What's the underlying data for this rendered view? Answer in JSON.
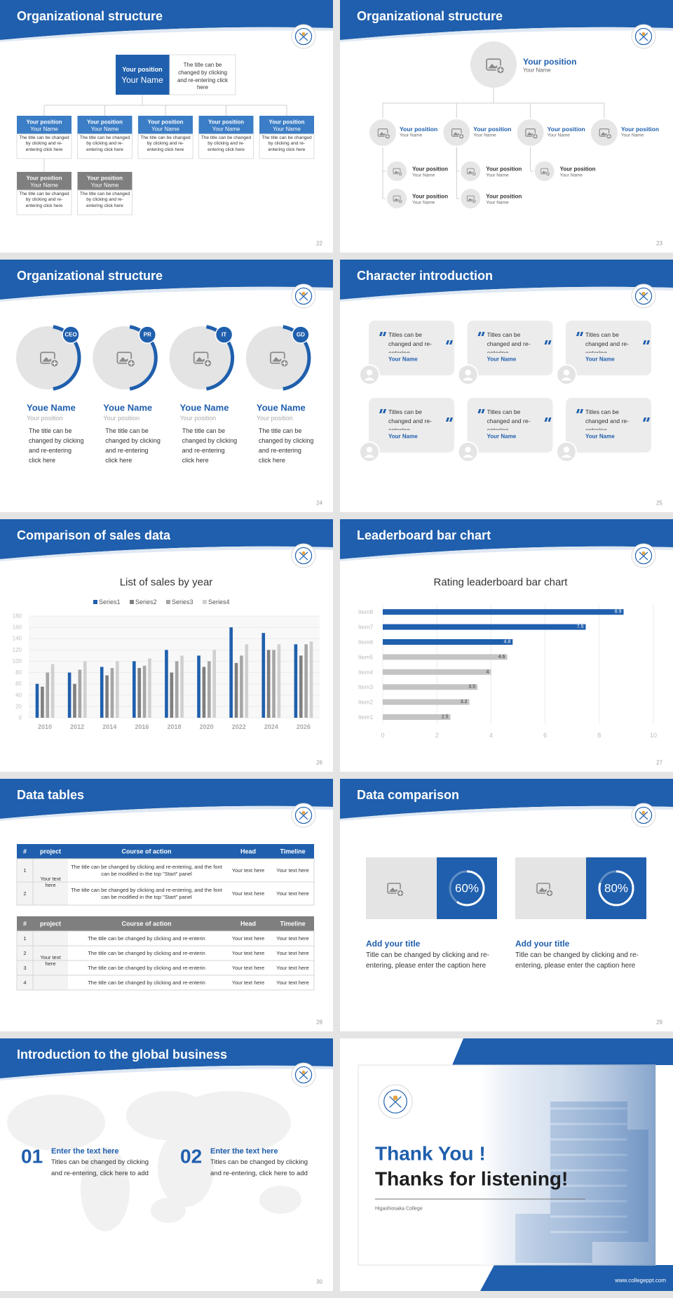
{
  "slides": [
    {
      "layout": "org-chart",
      "title": "Organizational structure",
      "page": "22",
      "top": {
        "position": "Your position",
        "name": "Your Name",
        "text": "The title can be changed by clicking and re-entering click here",
        "color": "#1f5fad"
      },
      "members": [
        {
          "position": "Your position",
          "name": "Your Name",
          "text": "The title can be changed by clicking and re-entering click here",
          "color": "#3b7dc6"
        },
        {
          "position": "Your position",
          "name": "Your Name",
          "text": "The title can be changed by clicking and re-entering click here",
          "color": "#3b7dc6"
        },
        {
          "position": "Your position",
          "name": "Your Name",
          "text": "The title can be changed by clicking and re-entering click here",
          "color": "#3b7dc6"
        },
        {
          "position": "Your position",
          "name": "Your Name",
          "text": "The title can be changed by clicking and re-entering click here",
          "color": "#3b7dc6"
        },
        {
          "position": "Your position",
          "name": "Your Name",
          "text": "The title can be changed by clicking and re-entering click here",
          "color": "#3b7dc6"
        },
        {
          "position": "Your position",
          "name": "Your Name",
          "text": "The title can be changed by clicking and re-entering click here",
          "color": "#7f7f7f"
        },
        {
          "position": "Your position",
          "name": "Your Name",
          "text": "The title can be changed by clicking and re-entering click here",
          "color": "#7f7f7f"
        }
      ]
    },
    {
      "layout": "org-tree",
      "title": "Organizational structure",
      "page": "23",
      "top": {
        "position": "Your position",
        "name": "Your Name"
      },
      "nodes": [
        {
          "position": "Your position",
          "name": "Your Name",
          "children": [
            {
              "position": "Your position",
              "name": "Your Name"
            },
            {
              "position": "Your position",
              "name": "Your Name"
            }
          ]
        },
        {
          "position": "Your position",
          "name": "Your Name",
          "children": [
            {
              "position": "Your position",
              "name": "Your Name"
            },
            {
              "position": "Your position",
              "name": "Your Name"
            }
          ]
        },
        {
          "position": "Your position",
          "name": "Your Name",
          "children": [
            {
              "position": "Your position",
              "name": "Your Name"
            }
          ]
        },
        {
          "position": "Your position",
          "name": "Your Name",
          "children": []
        }
      ]
    },
    {
      "layout": "profiles",
      "title": "Organizational structure",
      "page": "24",
      "people": [
        {
          "tag": "CEO",
          "name": "Youe Name",
          "position": "Your position",
          "text": "The title can be changed by clicking and re-entering click here"
        },
        {
          "tag": "PR",
          "name": "Youe Name",
          "position": "Your position",
          "text": "The title can be changed by clicking and re-entering click here"
        },
        {
          "tag": "IT",
          "name": "Youe Name",
          "position": "Your position",
          "text": "The title can be changed by clicking and re-entering click here"
        },
        {
          "tag": "GD",
          "name": "Youe Name",
          "position": "Your position",
          "text": "The title can be changed by clicking and re-entering click here"
        }
      ]
    },
    {
      "layout": "quotes",
      "title": "Character introduction",
      "page": "25",
      "cards": [
        {
          "text": "Titles can be changed and re-entering",
          "name": "Your Name"
        },
        {
          "text": "Titles can be changed and re-entering",
          "name": "Your Name"
        },
        {
          "text": "Titles can be changed and re-entering",
          "name": "Your Name"
        },
        {
          "text": "Titles can be changed and re-entering",
          "name": "Your Name"
        },
        {
          "text": "Titles can be changed and re-entering",
          "name": "Your Name"
        },
        {
          "text": "Titles can be changed and re-entering",
          "name": "Your Name"
        }
      ]
    },
    {
      "layout": "chart",
      "title": "Comparison of sales data",
      "page": "26",
      "chart_data": {
        "type": "bar",
        "title": "List of sales by year",
        "categories": [
          "2010",
          "2012",
          "2014",
          "2016",
          "2018",
          "2020",
          "2022",
          "2024",
          "2026"
        ],
        "series": [
          {
            "name": "Series1",
            "color": "#1f5fad",
            "values": [
              60,
              80,
              90,
              100,
              120,
              110,
              160,
              150,
              130
            ]
          },
          {
            "name": "Series2",
            "color": "#7f7f7f",
            "values": [
              55,
              60,
              75,
              88,
              80,
              90,
              97,
              120,
              110
            ]
          },
          {
            "name": "Series3",
            "color": "#a6a6a6",
            "values": [
              80,
              85,
              88,
              92,
              100,
              100,
              110,
              120,
              130
            ]
          },
          {
            "name": "Series4",
            "color": "#d0d0d0",
            "values": [
              95,
              100,
              100,
              105,
              110,
              120,
              130,
              130,
              135
            ]
          }
        ],
        "ylim": [
          0,
          180
        ],
        "yticks": [
          0,
          20,
          40,
          60,
          80,
          100,
          120,
          140,
          160,
          180
        ],
        "grid": true
      }
    },
    {
      "layout": "chart",
      "title": "Leaderboard bar chart",
      "page": "27",
      "chart_data": {
        "type": "bar",
        "horizontal": true,
        "title": "Rating leaderboard bar chart",
        "categories": [
          "Item1",
          "Item2",
          "Item3",
          "Item4",
          "Item5",
          "Item6",
          "Item7",
          "Item8"
        ],
        "values": [
          2.5,
          3.2,
          3.5,
          4,
          4.6,
          4.8,
          7.5,
          8.9
        ],
        "colors": [
          "#c4c4c4",
          "#c4c4c4",
          "#c4c4c4",
          "#c4c4c4",
          "#c4c4c4",
          "#1f5fad",
          "#1f5fad",
          "#1f5fad"
        ],
        "xlim": [
          0,
          10
        ],
        "xticks": [
          0,
          2,
          4,
          6,
          8,
          10
        ],
        "grid": true
      }
    },
    {
      "layout": "tables",
      "title": "Data tables",
      "page": "28",
      "tables": [
        {
          "color": "#1f5fad",
          "header": [
            "#",
            "project",
            "Course of action",
            "Head",
            "Timeline"
          ],
          "project": "Your text here",
          "rows": [
            [
              "1",
              "The title can be changed by clicking and re-entering, and the font can be modified in the top \"Start\" panel",
              "Your text here",
              "Your text here"
            ],
            [
              "2",
              "The title can be changed by clicking and re-entering, and the font can be modified in the top \"Start\" panel",
              "Your text here",
              "Your text here"
            ]
          ]
        },
        {
          "color": "#7f7f7f",
          "header": [
            "#",
            "project",
            "Course of action",
            "Head",
            "Timeline"
          ],
          "project": "Your text here",
          "rows": [
            [
              "1",
              "The title can be changed by clicking and re-enterin",
              "Your text here",
              "Your text here"
            ],
            [
              "2",
              "The title can be changed by clicking and re-enterin",
              "Your text here",
              "Your text here"
            ],
            [
              "3",
              "The title can be changed by clicking and re-enterin",
              "Your text here",
              "Your text here"
            ],
            [
              "4",
              "The title can be changed by clicking and re-enterin",
              "Your text here",
              "Your text here"
            ]
          ]
        }
      ]
    },
    {
      "layout": "comparison",
      "title": "Data comparison",
      "page": "29",
      "items": [
        {
          "value": 60,
          "value_label": "60%",
          "heading": "Add your title",
          "text": "Title can be changed by clicking and re-entering, please enter the caption here"
        },
        {
          "value": 80,
          "value_label": "80%",
          "heading": "Add your title",
          "text": "Title can be changed by clicking and re-entering, please enter the caption here"
        }
      ]
    },
    {
      "layout": "business",
      "title": "Introduction to the global business",
      "page": "30",
      "items": [
        {
          "number": "01",
          "heading": "Enter the text here",
          "text": "Titles can be changed by clicking and re-entering, click here to add"
        },
        {
          "number": "02",
          "heading": "Enter the text here",
          "text": "Titles can be changed by clicking and re-entering, click here to add"
        }
      ]
    },
    {
      "layout": "closing",
      "heading": "Thank You !",
      "subheading": "Thanks for listening!",
      "college": "Higashiosaka College",
      "website": "www.collegeppt.com"
    }
  ]
}
